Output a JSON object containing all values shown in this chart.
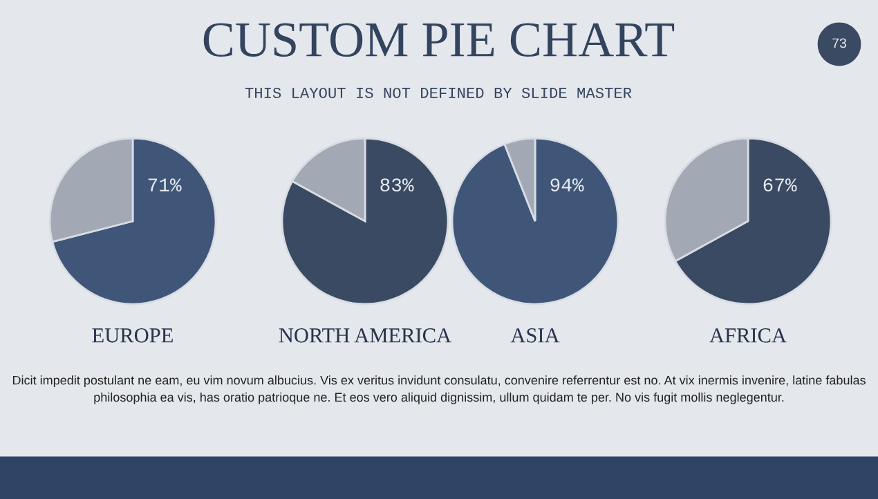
{
  "chart_data": [
    {
      "type": "pie",
      "title": "EUROPE",
      "categories": [
        null,
        null
      ],
      "values": [
        71,
        29
      ],
      "colors": [
        "#3f5679",
        "#a2a9b5"
      ],
      "value_labels": [
        "71%",
        null
      ],
      "legend": false,
      "annotations": [
        "CUSTOM PIE CHART",
        "THIS LAYOUT IS NOT DEFINED BY SLIDE MASTER",
        "73"
      ]
    },
    {
      "type": "pie",
      "title": "NORTH AMERICA",
      "categories": [
        null,
        null
      ],
      "values": [
        83,
        17
      ],
      "colors": [
        "#3a4a63",
        "#a2a9b5"
      ],
      "value_labels": [
        "83%",
        null
      ],
      "legend": false
    },
    {
      "type": "pie",
      "title": "ASIA",
      "categories": [
        null,
        null
      ],
      "values": [
        94,
        6
      ],
      "colors": [
        "#3f5679",
        "#a2a9b5"
      ],
      "value_labels": [
        "94%",
        null
      ],
      "legend": false
    },
    {
      "type": "pie",
      "title": "AFRICA",
      "categories": [
        null,
        null
      ],
      "values": [
        67,
        33
      ],
      "colors": [
        "#3a4a63",
        "#a2a9b5"
      ],
      "value_labels": [
        "67%",
        null
      ],
      "legend": false,
      "annotations": [
        "Dicit impedit postulant ne eam, eu vim novum albucius. Vis ex veritus invidunt consulatu, convenire referrentur est no. At vix inermis invenire, latine fabulas philosophia ea vis, has oratio patrioque ne. Et eos vero aliquid dignissim, ullum quidam te per. No vis fugit mollis neglegentur."
      ]
    }
  ]
}
